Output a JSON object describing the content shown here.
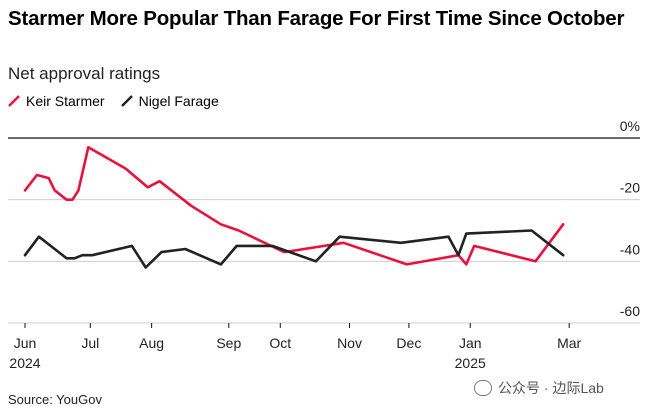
{
  "chart_data": {
    "type": "line",
    "title": "Starmer More Popular Than Farage For First Time Since October",
    "subtitle": "Net approval ratings",
    "source": "Source: YouGov",
    "ylim": [
      -60,
      0
    ],
    "y_ticks": [
      {
        "value": 0,
        "label": "0%"
      },
      {
        "value": -20,
        "label": "-20"
      },
      {
        "value": -40,
        "label": "-40"
      },
      {
        "value": -60,
        "label": "-60"
      }
    ],
    "x_range": [
      0,
      283
    ],
    "x_ticks": [
      {
        "value": 0,
        "label": "Jun",
        "sub": "2024"
      },
      {
        "value": 33,
        "label": "Jul",
        "sub": ""
      },
      {
        "value": 64,
        "label": "Aug",
        "sub": ""
      },
      {
        "value": 103,
        "label": "Sep",
        "sub": ""
      },
      {
        "value": 129,
        "label": "Oct",
        "sub": ""
      },
      {
        "value": 164,
        "label": "Nov",
        "sub": ""
      },
      {
        "value": 194,
        "label": "Dec",
        "sub": ""
      },
      {
        "value": 225,
        "label": "Jan",
        "sub": "2025"
      },
      {
        "value": 275,
        "label": "Mar",
        "sub": ""
      }
    ],
    "series": [
      {
        "name": "Keir Starmer",
        "color": "#e8123c",
        "points": [
          [
            0,
            -17
          ],
          [
            6,
            -12
          ],
          [
            12,
            -13
          ],
          [
            15,
            -17
          ],
          [
            21,
            -20
          ],
          [
            24,
            -20
          ],
          [
            27,
            -17
          ],
          [
            32,
            -3
          ],
          [
            51,
            -10
          ],
          [
            62,
            -16
          ],
          [
            68,
            -14
          ],
          [
            84,
            -22
          ],
          [
            99,
            -28
          ],
          [
            108,
            -30
          ],
          [
            131,
            -37
          ],
          [
            161,
            -34
          ],
          [
            193,
            -41
          ],
          [
            219,
            -38
          ],
          [
            223,
            -41
          ],
          [
            227,
            -35
          ],
          [
            258,
            -40
          ],
          [
            272,
            -28
          ]
        ]
      },
      {
        "name": "Nigel Farage",
        "color": "#222222",
        "points": [
          [
            0,
            -38
          ],
          [
            7,
            -32
          ],
          [
            13,
            -35
          ],
          [
            21,
            -39
          ],
          [
            25,
            -39
          ],
          [
            29,
            -38
          ],
          [
            34,
            -38
          ],
          [
            54,
            -35
          ],
          [
            61,
            -42
          ],
          [
            69,
            -37
          ],
          [
            81,
            -36
          ],
          [
            99,
            -41
          ],
          [
            107,
            -35
          ],
          [
            125,
            -35
          ],
          [
            147,
            -40
          ],
          [
            159,
            -32
          ],
          [
            190,
            -34
          ],
          [
            214,
            -32
          ],
          [
            219,
            -38
          ],
          [
            223,
            -31
          ],
          [
            256,
            -30
          ],
          [
            272,
            -38
          ]
        ]
      }
    ]
  },
  "watermark": "公众号 · 边际Lab"
}
